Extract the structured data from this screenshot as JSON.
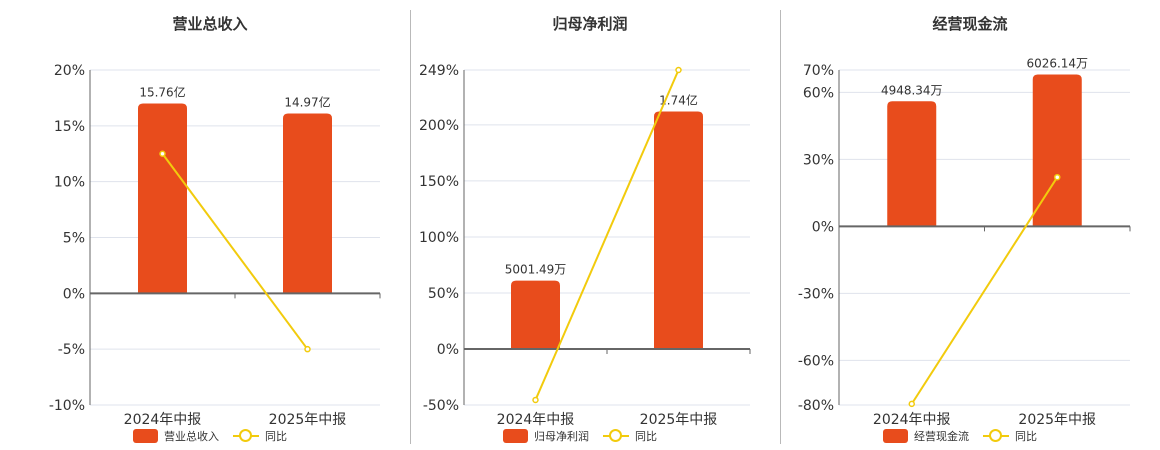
{
  "colors": {
    "bar": "#e84c1c",
    "line": "#f2cb0d",
    "grid": "#dfe3ec",
    "axis": "#666666",
    "text": "#333333"
  },
  "legend_line_label": "同比",
  "chart_data": [
    {
      "type": "bar",
      "title": "营业总收入",
      "categories": [
        "2024年中报",
        "2025年中报"
      ],
      "series": [
        {
          "name": "营业总收入",
          "type": "bar",
          "labels": [
            "15.76亿",
            "14.97亿"
          ],
          "values": [
            15.76,
            14.97
          ],
          "unit": "亿",
          "plot_values_pct": [
            17.0,
            16.1
          ]
        },
        {
          "name": "同比",
          "type": "line",
          "values": [
            12.5,
            -5.0
          ]
        }
      ],
      "yticks": [
        "20%",
        "15%",
        "10%",
        "5%",
        "0%",
        "-5%",
        "-10%"
      ],
      "ytick_values": [
        20,
        15,
        10,
        5,
        0,
        -5,
        -10
      ],
      "ylim": [
        -10,
        20
      ],
      "xlabel": "",
      "ylabel": "",
      "grid": true,
      "legend_position": "bottom"
    },
    {
      "type": "bar",
      "title": "归母净利润",
      "categories": [
        "2024年中报",
        "2025年中报"
      ],
      "series": [
        {
          "name": "归母净利润",
          "type": "bar",
          "labels": [
            "5001.49万",
            "1.74亿"
          ],
          "values": [
            5001.49,
            17400
          ],
          "unit": "万",
          "plot_values_pct": [
            61,
            212
          ]
        },
        {
          "name": "同比",
          "type": "line",
          "values": [
            -45.5,
            249
          ]
        }
      ],
      "yticks": [
        "249%",
        "200%",
        "150%",
        "100%",
        "50%",
        "0%",
        "-50%"
      ],
      "ytick_values": [
        249,
        200,
        150,
        100,
        50,
        0,
        -50
      ],
      "ylim": [
        -50,
        249
      ],
      "xlabel": "",
      "ylabel": "",
      "grid": true,
      "legend_position": "bottom"
    },
    {
      "type": "bar",
      "title": "经营现金流",
      "categories": [
        "2024年中报",
        "2025年中报"
      ],
      "series": [
        {
          "name": "经营现金流",
          "type": "bar",
          "labels": [
            "4948.34万",
            "6026.14万"
          ],
          "values": [
            4948.34,
            6026.14
          ],
          "unit": "万",
          "plot_values_pct": [
            56,
            68
          ]
        },
        {
          "name": "同比",
          "type": "line",
          "values": [
            -79.5,
            22
          ]
        }
      ],
      "yticks": [
        "70%",
        "60%",
        "30%",
        "0%",
        "-30%",
        "-60%",
        "-80%"
      ],
      "ytick_values": [
        70,
        60,
        30,
        0,
        -30,
        -60,
        -80
      ],
      "ylim": [
        -80,
        70
      ],
      "xlabel": "",
      "ylabel": "",
      "grid": true,
      "legend_position": "bottom"
    }
  ]
}
